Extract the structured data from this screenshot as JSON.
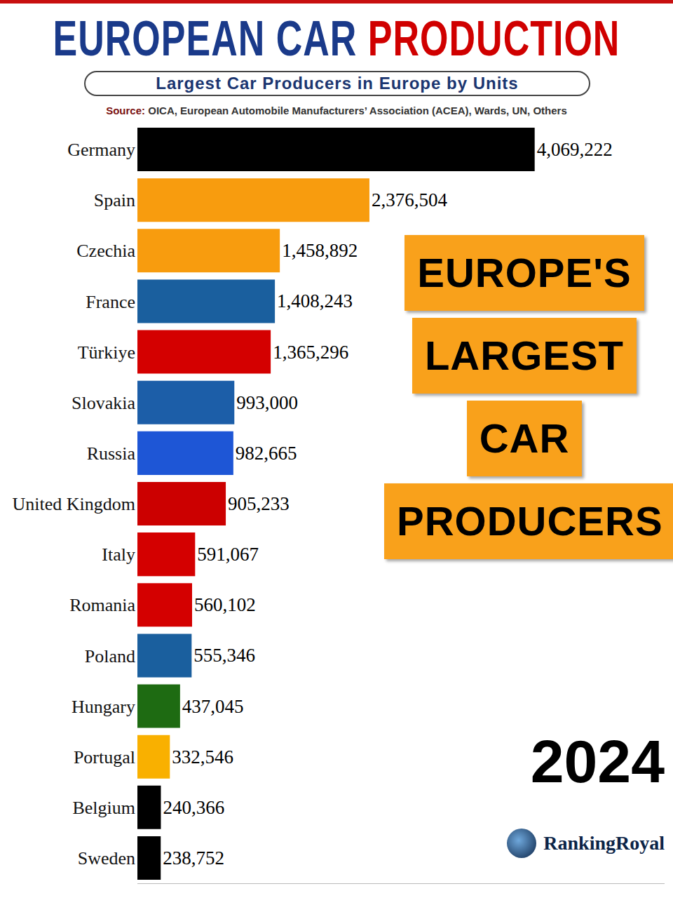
{
  "chart_data": {
    "type": "bar",
    "orientation": "horizontal",
    "title": "EUROPEAN CAR PRODUCTION",
    "subtitle": "Largest Car Producers in Europe by Units",
    "source": "Source: OICA, European Automobile Manufacturers’ Association (ACEA), Wards, UN, Others",
    "categories": [
      "Germany",
      "Spain",
      "Czechia",
      "France",
      "Türkiye",
      "Slovakia",
      "Russia",
      "United Kingdom",
      "Italy",
      "Romania",
      "Poland",
      "Hungary",
      "Portugal",
      "Belgium",
      "Sweden"
    ],
    "values": [
      4069222,
      2376504,
      1458892,
      1408243,
      1365296,
      993000,
      982665,
      905233,
      591067,
      560102,
      555346,
      437045,
      332546,
      240366,
      238752
    ],
    "value_labels": [
      "4,069,222",
      "2,376,504",
      "1,458,892",
      "1,408,243",
      "1,365,296",
      "993,000",
      "982,665",
      "905,233",
      "591,067",
      "560,102",
      "555,346",
      "437,045",
      "332,546",
      "240,366",
      "238,752"
    ],
    "colors": [
      "#000000",
      "#f89c0e",
      "#f89c0e",
      "#1a5f9e",
      "#d40000",
      "#1c5ea8",
      "#1e56d6",
      "#cc0000",
      "#d40000",
      "#d40000",
      "#1a5f9e",
      "#1e6b12",
      "#f9b000",
      "#000000",
      "#000000"
    ],
    "xlim": [
      0,
      5400000
    ],
    "data_labels": true,
    "tick_labels": "y",
    "grid": false,
    "annotations": {
      "callout": [
        "EUROPE'S",
        "LARGEST",
        "CAR",
        "PRODUCERS"
      ],
      "year": "2024",
      "watermark": "RankingRoyal"
    }
  }
}
